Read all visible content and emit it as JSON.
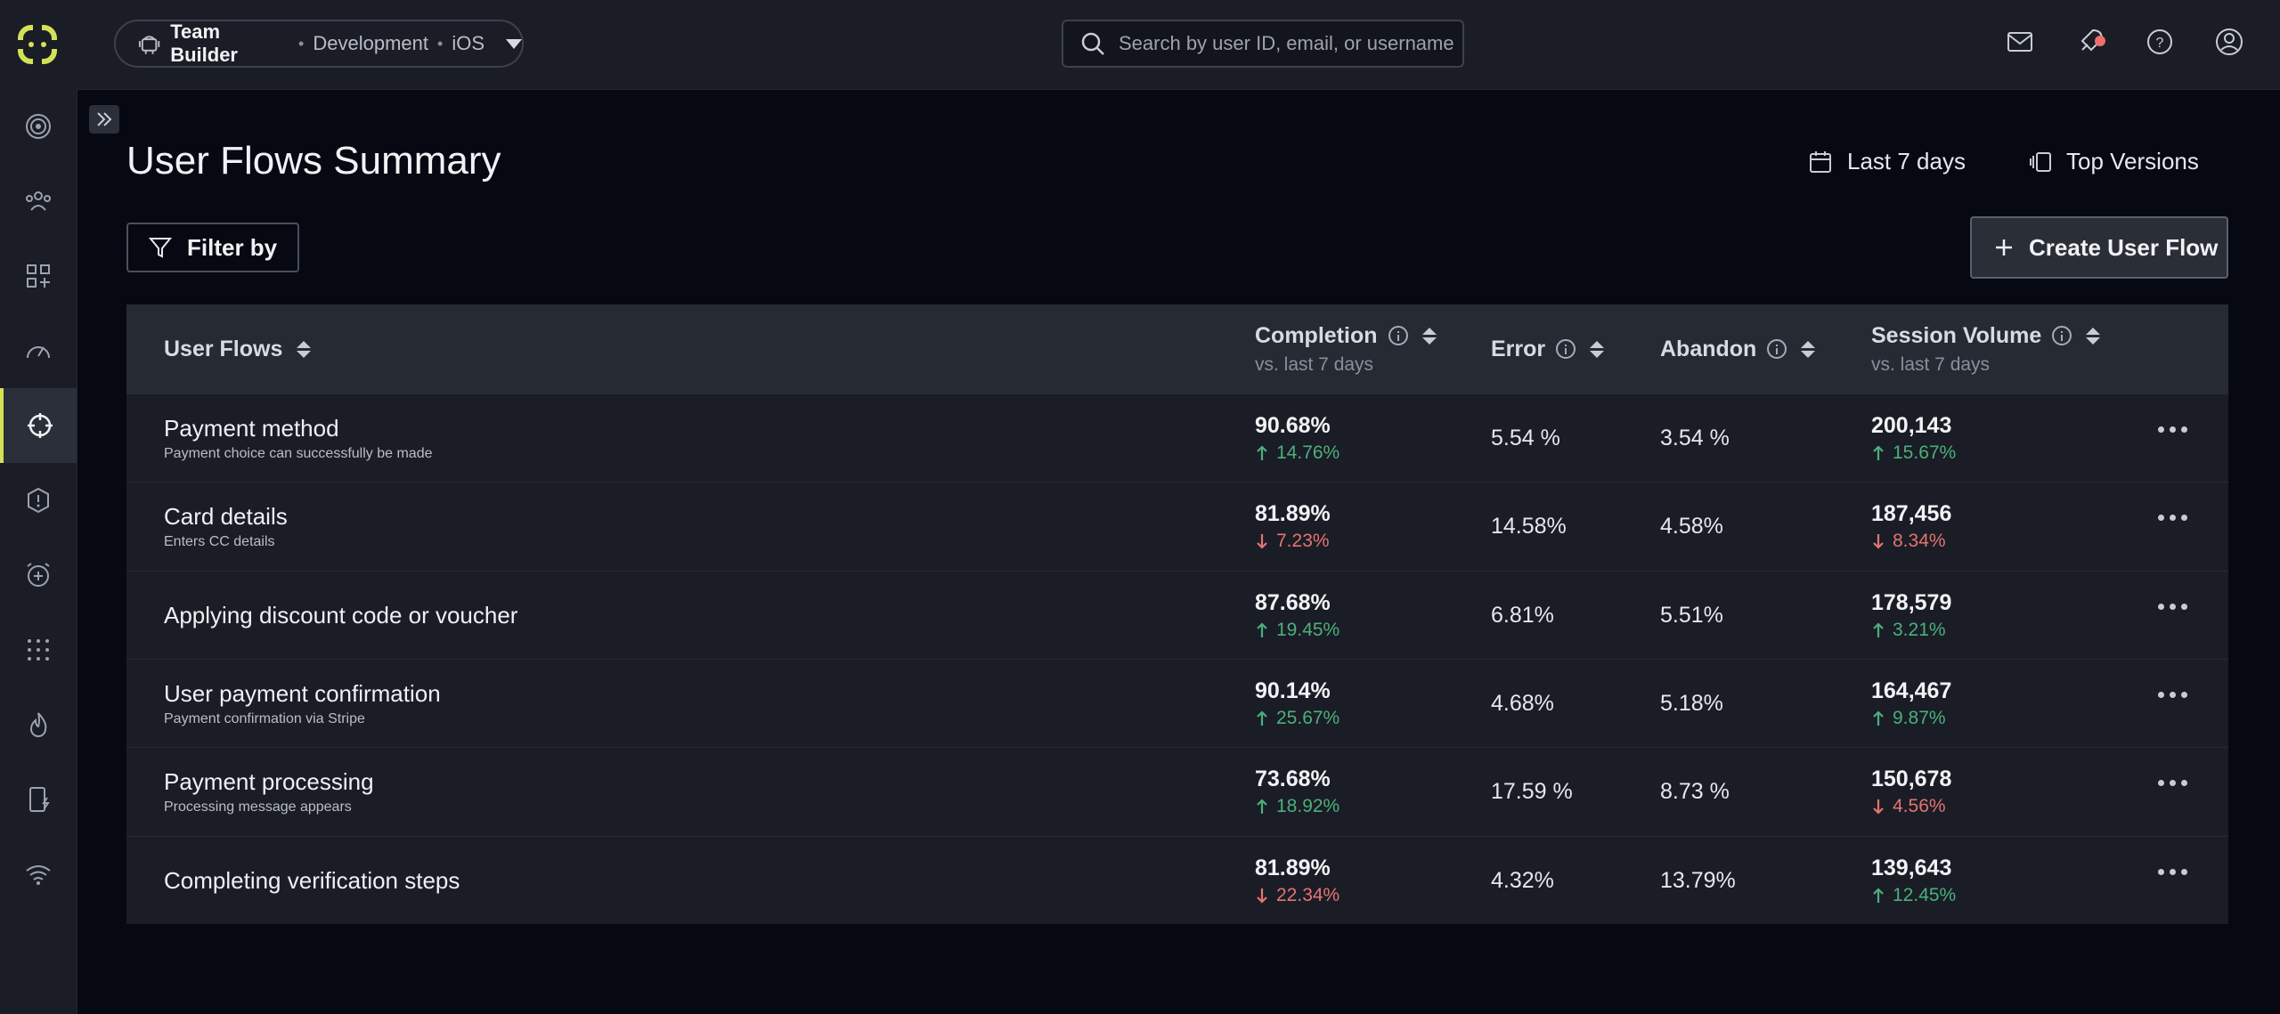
{
  "topbar": {
    "app_name": "Team Builder",
    "environment": "Development",
    "platform": "iOS",
    "search_placeholder": "Search by user ID, email, or username"
  },
  "page": {
    "title": "User Flows Summary",
    "date_range": "Last 7 days",
    "top_versions": "Top Versions",
    "filter_label": "Filter by",
    "create_label": "Create User Flow"
  },
  "table": {
    "headers": {
      "flows": "User Flows",
      "completion": "Completion",
      "completion_sub": "vs. last 7 days",
      "error": "Error",
      "abandon": "Abandon",
      "volume": "Session Volume",
      "volume_sub": "vs. last 7 days"
    },
    "rows": [
      {
        "name": "Payment method",
        "desc": "Payment choice can successfully be made",
        "completion": "90.68%",
        "completion_delta": "14.76%",
        "completion_dir": "up",
        "error": "5.54 %",
        "abandon": "3.54 %",
        "volume": "200,143",
        "volume_delta": "15.67%",
        "volume_dir": "up"
      },
      {
        "name": "Card details",
        "desc": "Enters CC details",
        "completion": "81.89%",
        "completion_delta": "7.23%",
        "completion_dir": "down",
        "error": "14.58%",
        "abandon": "4.58%",
        "volume": "187,456",
        "volume_delta": "8.34%",
        "volume_dir": "down"
      },
      {
        "name": "Applying discount code or voucher",
        "desc": "",
        "completion": "87.68%",
        "completion_delta": "19.45%",
        "completion_dir": "up",
        "error": "6.81%",
        "abandon": "5.51%",
        "volume": "178,579",
        "volume_delta": "3.21%",
        "volume_dir": "up"
      },
      {
        "name": "User payment confirmation",
        "desc": "Payment confirmation via Stripe",
        "completion": "90.14%",
        "completion_delta": "25.67%",
        "completion_dir": "up",
        "error": "4.68%",
        "abandon": "5.18%",
        "volume": "164,467",
        "volume_delta": "9.87%",
        "volume_dir": "up"
      },
      {
        "name": "Payment processing",
        "desc": "Processing message appears",
        "completion": "73.68%",
        "completion_delta": "18.92%",
        "completion_dir": "up",
        "error": "17.59 %",
        "abandon": "8.73 %",
        "volume": "150,678",
        "volume_delta": "4.56%",
        "volume_dir": "down"
      },
      {
        "name": "Completing verification steps",
        "desc": "",
        "completion": "81.89%",
        "completion_delta": "22.34%",
        "completion_dir": "down",
        "error": "4.32%",
        "abandon": "13.79%",
        "volume": "139,643",
        "volume_delta": "12.45%",
        "volume_dir": "up"
      }
    ]
  },
  "colors": {
    "accent": "#d4e157",
    "up": "#4caf7d",
    "down": "#e57373",
    "background": "#060912",
    "panel": "#1a1d25"
  },
  "icons": {
    "sidebar": [
      "signal-icon",
      "users-icon",
      "apps-add-icon",
      "gauge-icon",
      "crosshair-icon",
      "alert-hexagon-icon",
      "alarm-plus-icon",
      "grid-dots-icon",
      "flame-icon",
      "device-bolt-icon",
      "wifi-icon"
    ],
    "topbar": [
      "mail-icon",
      "rocket-icon",
      "help-icon",
      "account-icon"
    ]
  }
}
